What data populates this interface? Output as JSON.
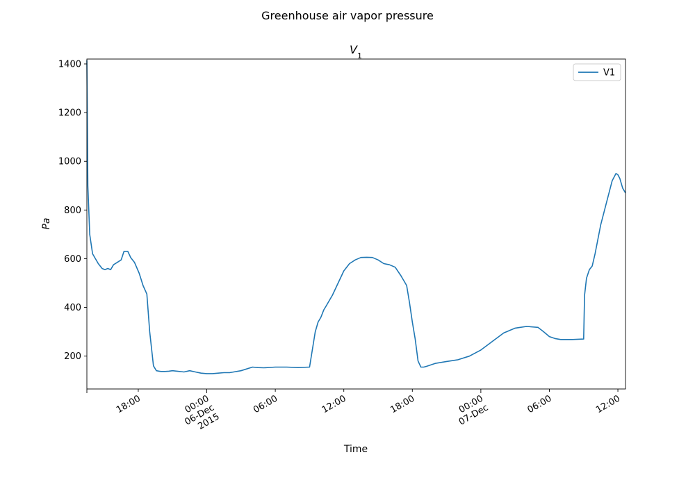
{
  "figure": {
    "suptitle": "Greenhouse air vapor pressure"
  },
  "chart_data": {
    "type": "line",
    "title": "V1",
    "xlabel": "Time",
    "ylabel": "Pa",
    "x_range": [
      "2015-12-05 13:30",
      "2015-12-07 12:40"
    ],
    "ylim": [
      65,
      1420
    ],
    "grid": false,
    "legend_position": "top-right",
    "x_ticks": [
      {
        "t": "2015-12-05 18:00",
        "label": "18:00"
      },
      {
        "t": "2015-12-06 00:00",
        "label": "00:00\n06-Dec\n2015"
      },
      {
        "t": "2015-12-06 06:00",
        "label": "06:00"
      },
      {
        "t": "2015-12-06 12:00",
        "label": "12:00"
      },
      {
        "t": "2015-12-06 18:00",
        "label": "18:00"
      },
      {
        "t": "2015-12-07 00:00",
        "label": "00:00\n07-Dec"
      },
      {
        "t": "2015-12-07 06:00",
        "label": "06:00"
      },
      {
        "t": "2015-12-07 12:00",
        "label": "12:00"
      }
    ],
    "y_ticks": [
      200,
      400,
      600,
      800,
      1000,
      1200,
      1400
    ],
    "series": [
      {
        "name": "V1",
        "color": "#1f77b4",
        "x": [
          "2015-12-05 13:30",
          "2015-12-05 13:35",
          "2015-12-05 13:45",
          "2015-12-05 14:00",
          "2015-12-05 14:30",
          "2015-12-05 14:50",
          "2015-12-05 15:05",
          "2015-12-05 15:20",
          "2015-12-05 15:35",
          "2015-12-05 15:50",
          "2015-12-05 16:10",
          "2015-12-05 16:30",
          "2015-12-05 16:45",
          "2015-12-05 17:05",
          "2015-12-05 17:20",
          "2015-12-05 17:40",
          "2015-12-05 18:05",
          "2015-12-05 18:25",
          "2015-12-05 18:45",
          "2015-12-05 19:00",
          "2015-12-05 19:20",
          "2015-12-05 19:35",
          "2015-12-05 19:50",
          "2015-12-05 20:00",
          "2015-12-05 20:10",
          "2015-12-05 20:20",
          "2015-12-05 20:40",
          "2015-12-05 21:00",
          "2015-12-05 22:00",
          "2015-12-05 22:30",
          "2015-12-05 23:00",
          "2015-12-05 23:30",
          "2015-12-06 00:00",
          "2015-12-06 00:30",
          "2015-12-06 01:00",
          "2015-12-06 01:30",
          "2015-12-06 02:00",
          "2015-12-06 03:00",
          "2015-12-06 04:00",
          "2015-12-06 04:30",
          "2015-12-06 05:00",
          "2015-12-06 06:00",
          "2015-12-06 07:00",
          "2015-12-06 08:00",
          "2015-12-06 09:00",
          "2015-12-06 09:30",
          "2015-12-06 09:45",
          "2015-12-06 10:00",
          "2015-12-06 10:15",
          "2015-12-06 10:30",
          "2015-12-06 10:45",
          "2015-12-06 11:00",
          "2015-12-06 11:30",
          "2015-12-06 12:00",
          "2015-12-06 12:30",
          "2015-12-06 13:00",
          "2015-12-06 13:30",
          "2015-12-06 14:00",
          "2015-12-06 14:30",
          "2015-12-06 15:00",
          "2015-12-06 15:30",
          "2015-12-06 16:00",
          "2015-12-06 16:30",
          "2015-12-06 17:00",
          "2015-12-06 17:30",
          "2015-12-06 17:45",
          "2015-12-06 18:00",
          "2015-12-06 18:15",
          "2015-12-06 18:30",
          "2015-12-06 18:45",
          "2015-12-06 19:00",
          "2015-12-06 19:15",
          "2015-12-06 19:30",
          "2015-12-06 20:00",
          "2015-12-06 21:00",
          "2015-12-06 22:00",
          "2015-12-06 23:00",
          "2015-12-07 00:00",
          "2015-12-07 01:00",
          "2015-12-07 02:00",
          "2015-12-07 03:00",
          "2015-12-07 04:00",
          "2015-12-07 05:00",
          "2015-12-07 05:30",
          "2015-12-07 06:00",
          "2015-12-07 06:30",
          "2015-12-07 07:00",
          "2015-12-07 07:30",
          "2015-12-07 08:00",
          "2015-12-07 09:00",
          "2015-12-07 09:05",
          "2015-12-07 09:15",
          "2015-12-07 09:30",
          "2015-12-07 09:45",
          "2015-12-07 10:00",
          "2015-12-07 10:15",
          "2015-12-07 10:30",
          "2015-12-07 11:00",
          "2015-12-07 11:30",
          "2015-12-07 11:50",
          "2015-12-07 12:00",
          "2015-12-07 12:10",
          "2015-12-07 12:25",
          "2015-12-07 12:40"
        ],
        "y": [
          1415,
          900,
          700,
          620,
          580,
          560,
          555,
          560,
          555,
          575,
          585,
          595,
          630,
          630,
          605,
          585,
          540,
          490,
          455,
          300,
          160,
          140,
          138,
          137,
          137,
          137,
          138,
          140,
          135,
          140,
          135,
          130,
          128,
          128,
          130,
          132,
          132,
          140,
          155,
          153,
          152,
          155,
          155,
          153,
          155,
          300,
          340,
          360,
          390,
          410,
          430,
          450,
          500,
          550,
          580,
          595,
          605,
          606,
          605,
          595,
          580,
          575,
          565,
          530,
          490,
          420,
          340,
          270,
          180,
          155,
          155,
          158,
          162,
          170,
          178,
          185,
          200,
          225,
          260,
          295,
          315,
          322,
          318,
          300,
          280,
          272,
          268,
          268,
          268,
          270,
          450,
          520,
          555,
          570,
          620,
          680,
          740,
          830,
          920,
          950,
          945,
          930,
          890,
          870
        ]
      }
    ]
  }
}
